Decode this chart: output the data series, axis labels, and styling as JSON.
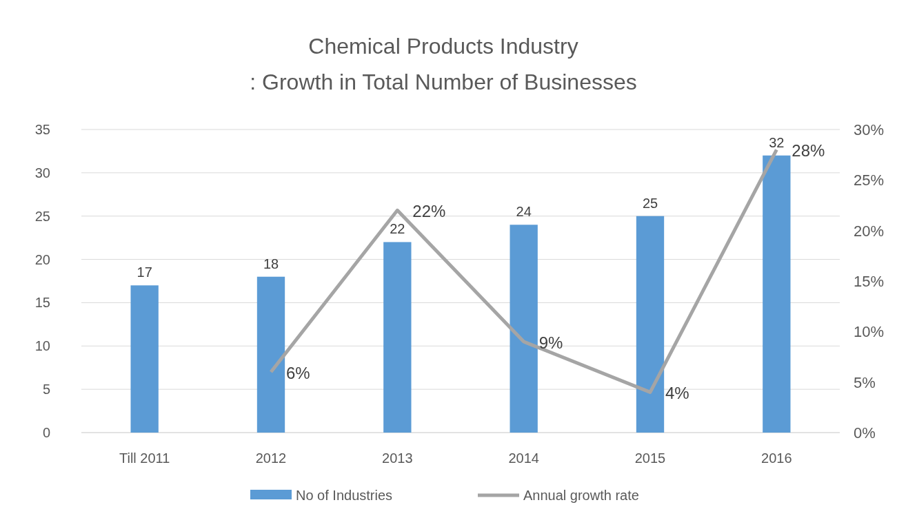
{
  "chart_data": {
    "type": "bar",
    "title": "Chemical Products Industry\n: Growth in Total Number of Businesses",
    "categories": [
      "Till 2011",
      "2012",
      "2013",
      "2014",
      "2015",
      "2016"
    ],
    "series": [
      {
        "name": "No of Industries",
        "color": "#5b9bd5",
        "values": [
          17,
          18,
          22,
          24,
          25,
          32
        ]
      },
      {
        "name": "Annual growth rate",
        "type": "line",
        "axis": "y2",
        "color": "#a5a5a5",
        "values": [
          null,
          6,
          22,
          9,
          4,
          28
        ],
        "value_labels": [
          null,
          "6%",
          "22%",
          "9%",
          "4%",
          "28%"
        ]
      }
    ],
    "ylim": [
      0,
      35
    ],
    "yticks": [
      0,
      5,
      10,
      15,
      20,
      25,
      30,
      35
    ],
    "y2lim": [
      0,
      30
    ],
    "y2ticks": [
      {
        "value": 0,
        "label": "0%"
      },
      {
        "value": 5,
        "label": "5%"
      },
      {
        "value": 10,
        "label": "10%"
      },
      {
        "value": 15,
        "label": "15%"
      },
      {
        "value": 20,
        "label": "20%"
      },
      {
        "value": 25,
        "label": "25%"
      },
      {
        "value": 30,
        "label": "30%"
      }
    ],
    "grid": "y",
    "legend": "bottom",
    "data_labels": true,
    "marker": "none",
    "line_style": "solid"
  }
}
